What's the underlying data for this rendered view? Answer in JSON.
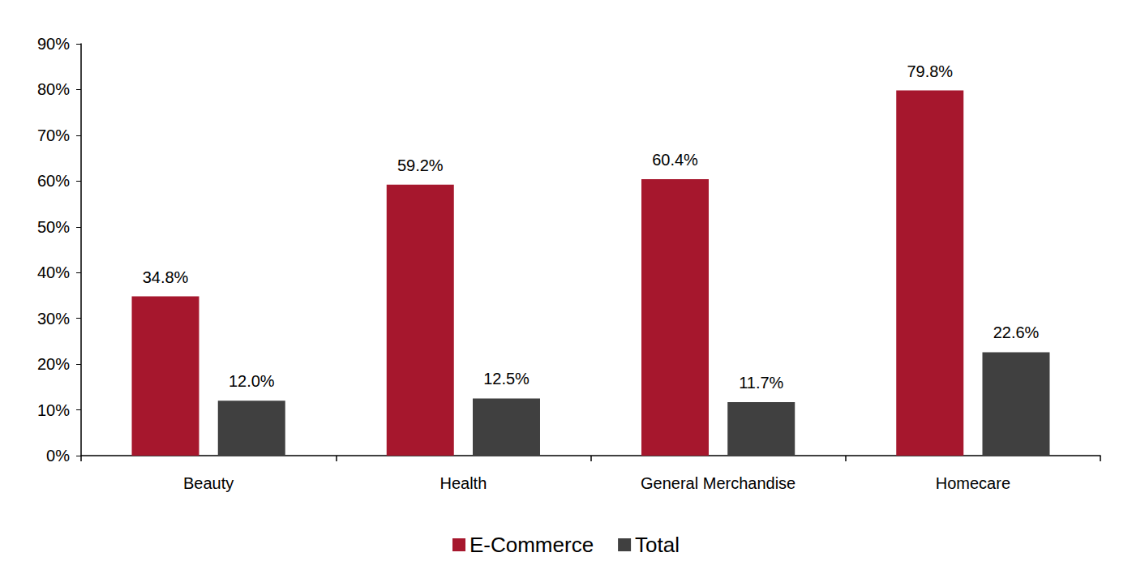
{
  "chart_data": {
    "type": "bar",
    "categories": [
      "Beauty",
      "Health",
      "General Merchandise",
      "Homecare"
    ],
    "series": [
      {
        "name": "E-Commerce",
        "color": "#a6172d",
        "values": [
          34.8,
          59.2,
          60.4,
          79.8
        ],
        "value_labels": [
          "34.8%",
          "59.2%",
          "60.4%",
          "79.8%"
        ]
      },
      {
        "name": "Total",
        "color": "#404040",
        "values": [
          12.0,
          12.5,
          11.7,
          22.6
        ],
        "value_labels": [
          "12.0%",
          "12.5%",
          "11.7%",
          "22.6%"
        ]
      }
    ],
    "ylim": [
      0,
      90
    ],
    "yticks": [
      {
        "value": 0,
        "label": "0%"
      },
      {
        "value": 10,
        "label": "10%"
      },
      {
        "value": 20,
        "label": "20%"
      },
      {
        "value": 30,
        "label": "30%"
      },
      {
        "value": 40,
        "label": "40%"
      },
      {
        "value": 50,
        "label": "50%"
      },
      {
        "value": 60,
        "label": "60%"
      },
      {
        "value": 70,
        "label": "70%"
      },
      {
        "value": 80,
        "label": "80%"
      },
      {
        "value": 90,
        "label": "90%"
      }
    ],
    "grid": false,
    "legend": "bottom",
    "data_labels": true
  }
}
